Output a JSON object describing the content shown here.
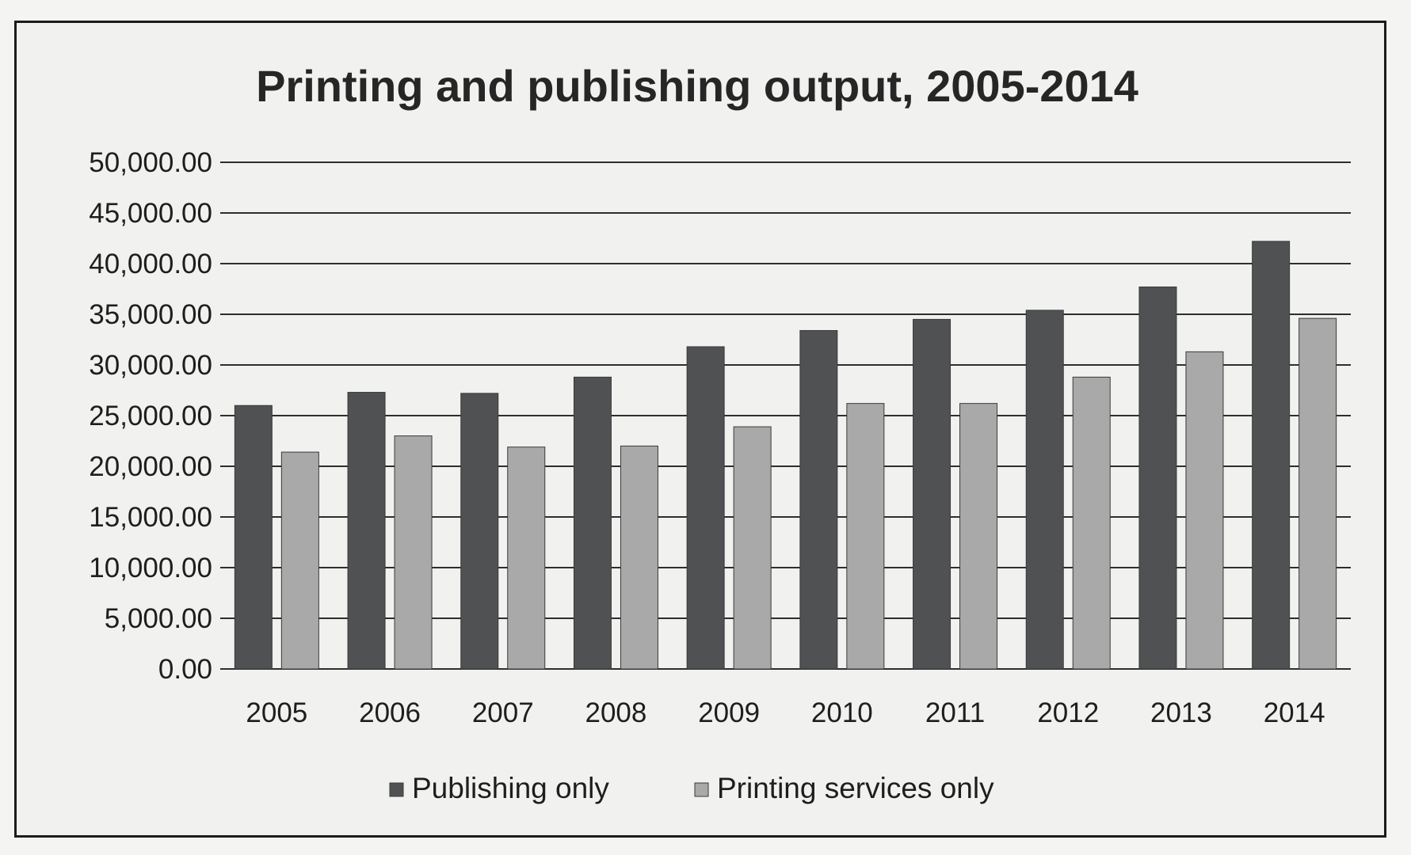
{
  "chart_data": {
    "type": "bar",
    "title": "Printing and publishing output, 2005-2014",
    "categories": [
      "2005",
      "2006",
      "2007",
      "2008",
      "2009",
      "2010",
      "2011",
      "2012",
      "2013",
      "2014"
    ],
    "series": [
      {
        "name": "Publishing only",
        "color": "#4f5153",
        "values": [
          26000,
          27300,
          27200,
          28800,
          31800,
          33400,
          34500,
          35400,
          37700,
          42200
        ]
      },
      {
        "name": "Printing services only",
        "color": "#a9a9a9",
        "values": [
          21400,
          23000,
          21900,
          22000,
          23900,
          26200,
          26200,
          28800,
          31300,
          34600
        ]
      }
    ],
    "y_ticks": [
      "0.00",
      "5,000.00",
      "10,000.00",
      "15,000.00",
      "20,000.00",
      "25,000.00",
      "30,000.00",
      "35,000.00",
      "40,000.00",
      "45,000.00",
      "50,000.00"
    ],
    "ylim": [
      0,
      50000
    ],
    "grid": true,
    "legend_position": "bottom"
  }
}
